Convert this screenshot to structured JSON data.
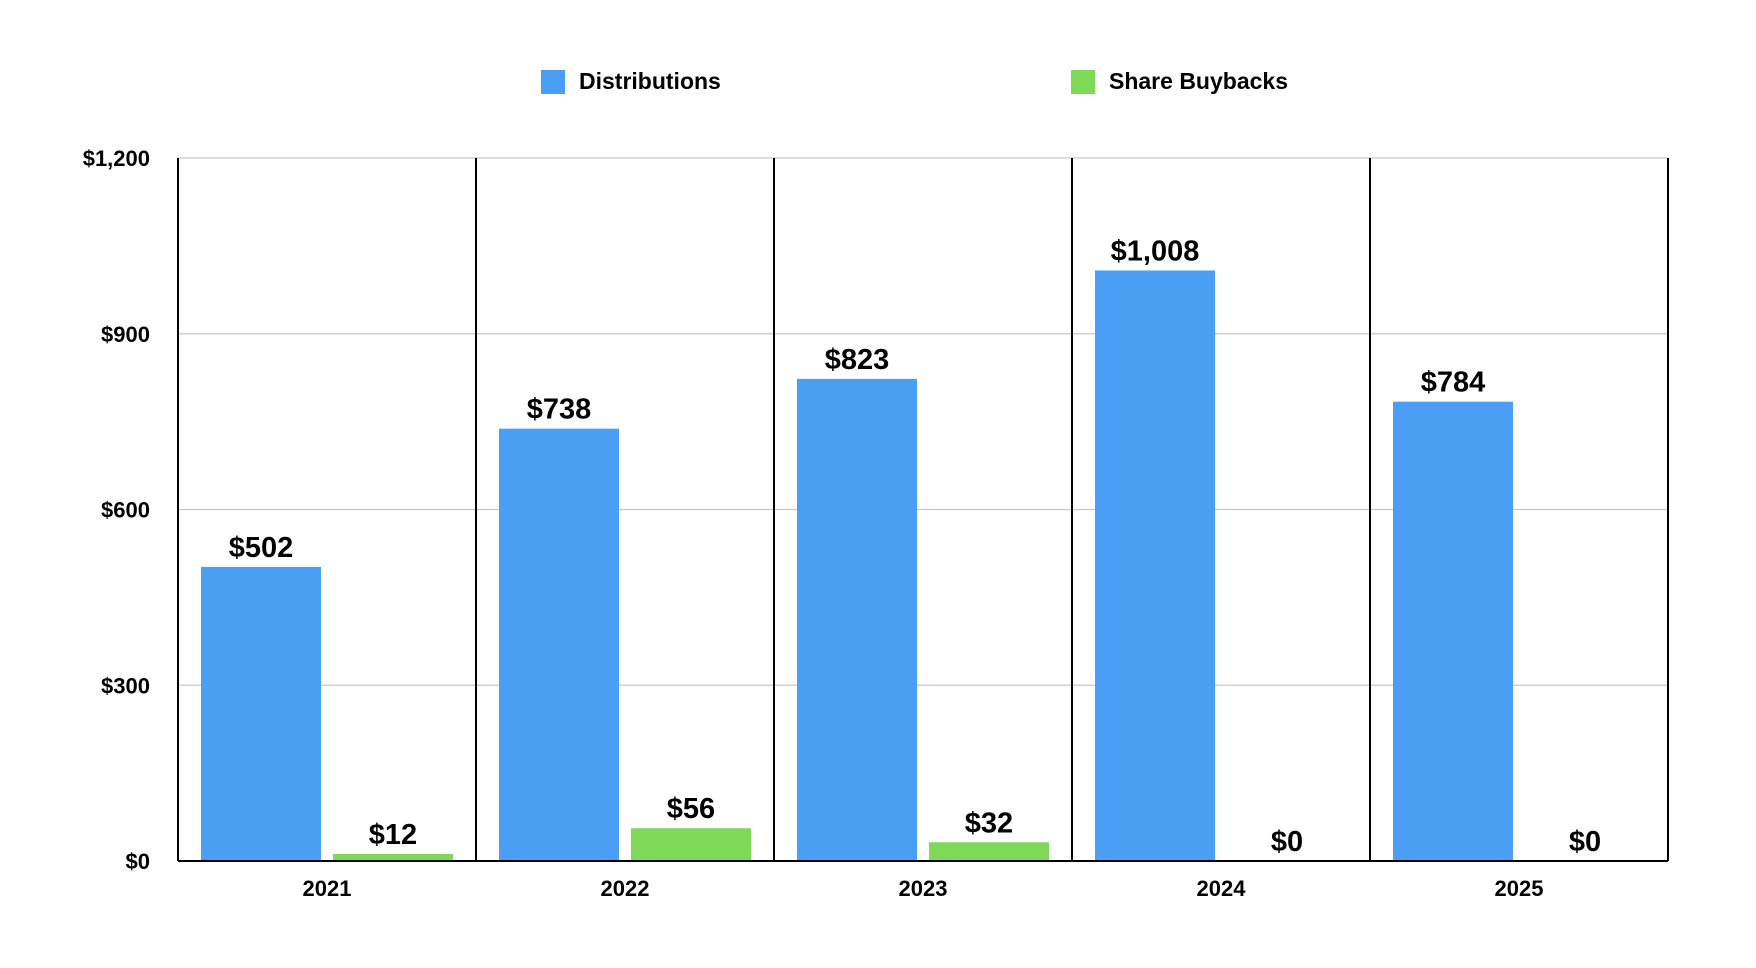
{
  "chart_data": {
    "type": "bar",
    "title": "",
    "xlabel": "",
    "ylabel": "",
    "categories": [
      "2021",
      "2022",
      "2023",
      "2024",
      "2025"
    ],
    "series": [
      {
        "name": "Distributions",
        "values": [
          502,
          738,
          823,
          1008,
          784
        ],
        "labels": [
          "$502",
          "$738",
          "$823",
          "$1,008",
          "$784"
        ],
        "color": "#4A9FF5"
      },
      {
        "name": "Share Buybacks",
        "values": [
          12,
          56,
          32,
          0,
          0
        ],
        "labels": [
          "$12",
          "$56",
          "$32",
          "$0",
          "$0"
        ],
        "color": "#7ED957"
      }
    ],
    "ylim": [
      0,
      1200
    ],
    "yticks": [
      0,
      300,
      600,
      900,
      1200
    ],
    "ytick_labels": [
      "$0",
      "$300",
      "$600",
      "$900",
      "$1,200"
    ],
    "grid": true,
    "legend_position": "top"
  }
}
